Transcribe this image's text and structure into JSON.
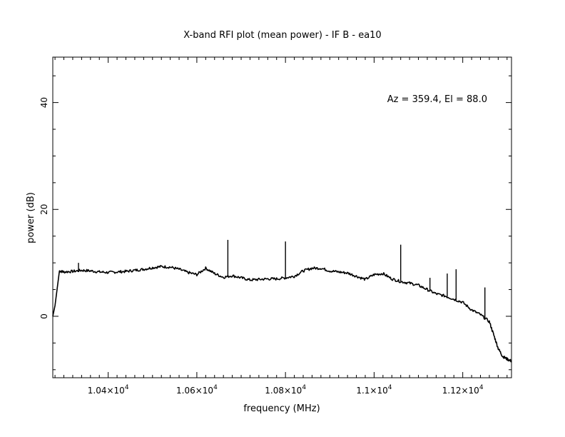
{
  "chart_data": {
    "type": "line",
    "title": "X-band RFI plot (mean power) - IF B - ea10",
    "xlabel": "frequency (MHz)",
    "ylabel": "power (dB)",
    "annotation": "Az = 359.4, El = 88.0",
    "xlim": [
      10275,
      11310
    ],
    "ylim": [
      -11.5,
      48.5
    ],
    "grid": false,
    "x_ticks": [
      {
        "value": 10400,
        "mantissa": "1.04",
        "exp": "4"
      },
      {
        "value": 10600,
        "mantissa": "1.06",
        "exp": "4"
      },
      {
        "value": 10800,
        "mantissa": "1.08",
        "exp": "4"
      },
      {
        "value": 11000,
        "mantissa": "1.1",
        "exp": "4"
      },
      {
        "value": 11200,
        "mantissa": "1.12",
        "exp": "4"
      }
    ],
    "y_ticks": [
      {
        "value": 0,
        "label": "0"
      },
      {
        "value": 20,
        "label": "20"
      },
      {
        "value": 40,
        "label": "40"
      }
    ],
    "series": [
      {
        "x": [
          10275,
          10280,
          10290,
          10300,
          10320,
          10340,
          10360,
          10380,
          10400,
          10420,
          10440,
          10460,
          10480,
          10500,
          10520,
          10540,
          10560,
          10580,
          10600,
          10620,
          10640,
          10660,
          10680,
          10700,
          10720,
          10740,
          10760,
          10780,
          10800,
          10820,
          10840,
          10860,
          10880,
          10900,
          10920,
          10940,
          10960,
          10980,
          11000,
          11020,
          11040,
          11060,
          11080,
          11100,
          11120,
          11140,
          11160,
          11180,
          11200,
          11220,
          11240,
          11260,
          11270,
          11280,
          11290,
          11300,
          11310
        ],
        "y": [
          0,
          2,
          8.5,
          8.3,
          8.4,
          8.6,
          8.5,
          8.3,
          8.2,
          8.3,
          8.4,
          8.6,
          8.8,
          9.1,
          9.3,
          9.2,
          8.8,
          8.2,
          7.8,
          9.0,
          8.0,
          7.3,
          7.6,
          7.2,
          6.8,
          6.9,
          7.0,
          7.0,
          7.2,
          7.5,
          8.5,
          9.0,
          9.0,
          8.5,
          8.3,
          8.1,
          7.5,
          6.9,
          7.8,
          8.0,
          7.0,
          6.5,
          6.2,
          5.8,
          5.0,
          4.2,
          3.8,
          3.2,
          2.6,
          1.2,
          0.3,
          -1.0,
          -3.5,
          -6.0,
          -7.5,
          -8.0,
          -8.4
        ]
      }
    ],
    "spikes": [
      {
        "x": 10333,
        "y": 10.0
      },
      {
        "x": 10670,
        "y": 14.3
      },
      {
        "x": 10800,
        "y": 14.0
      },
      {
        "x": 11060,
        "y": 13.4
      },
      {
        "x": 11126,
        "y": 7.2
      },
      {
        "x": 11165,
        "y": 8.0
      },
      {
        "x": 11185,
        "y": 8.8
      },
      {
        "x": 11250,
        "y": 5.4
      }
    ]
  }
}
